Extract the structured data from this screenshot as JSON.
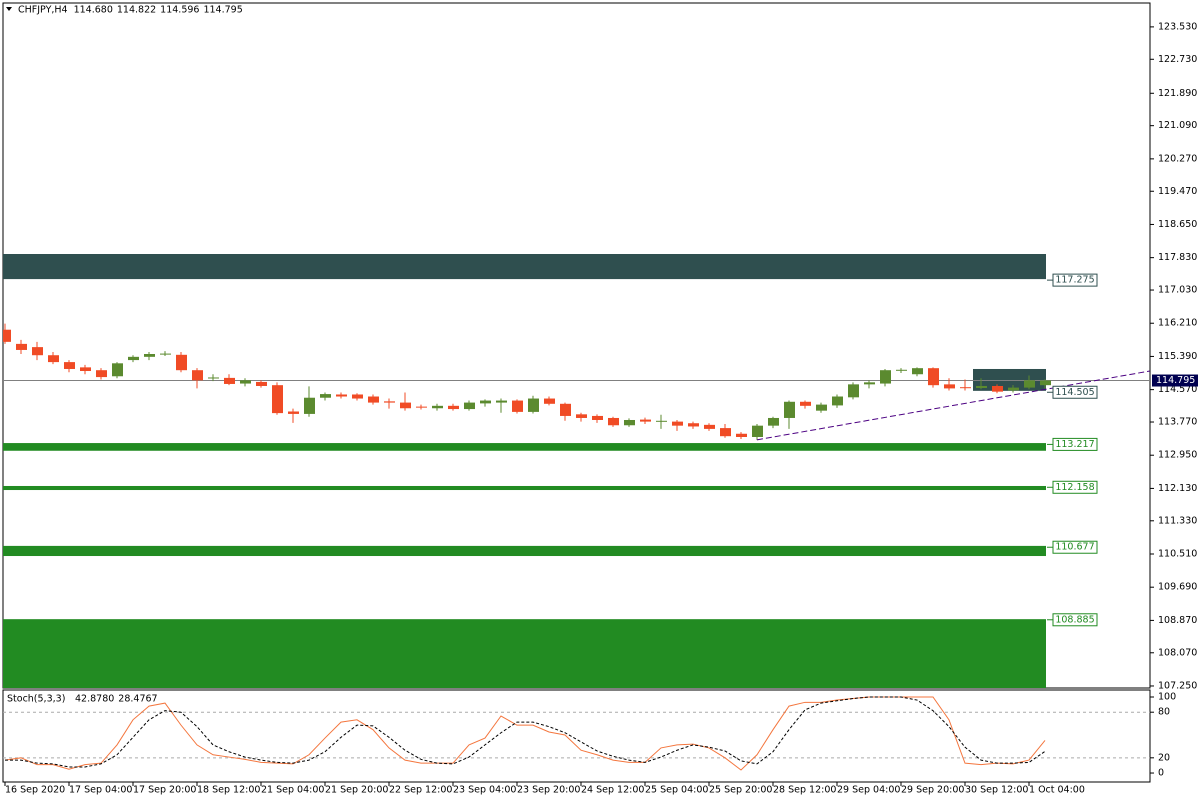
{
  "header": {
    "symbol": "CHFJPY,H4",
    "values": [
      114.68,
      114.822,
      114.596,
      114.795
    ],
    "value_labels": [
      "114.680",
      "114.822",
      "114.596",
      "114.795"
    ]
  },
  "chart_data": [
    {
      "type": "candlestick",
      "categories": [
        "16 Sep 2020",
        null,
        null,
        null,
        "17 Sep 04:00",
        null,
        null,
        null,
        "17 Sep 20:00",
        null,
        null,
        null,
        "18 Sep 12:00",
        null,
        null,
        null,
        "21 Sep 04:00",
        null,
        null,
        null,
        "21 Sep 20:00",
        null,
        null,
        null,
        "22 Sep 12:00",
        null,
        null,
        null,
        "23 Sep 04:00",
        null,
        null,
        null,
        "23 Sep 20:00",
        null,
        null,
        null,
        "24 Sep 12:00",
        null,
        null,
        null,
        "25 Sep 04:00",
        null,
        null,
        null,
        "25 Sep 20:00",
        null,
        null,
        null,
        "28 Sep 12:00",
        null,
        null,
        null,
        "29 Sep 04:00",
        null,
        null,
        null,
        "29 Sep 20:00",
        null,
        null,
        null,
        "30 Sep 12:00",
        null,
        null,
        null,
        "1 Oct 04:00",
        null
      ],
      "open": [
        116.05,
        115.7,
        115.62,
        115.42,
        115.25,
        115.12,
        115.05,
        114.9,
        115.3,
        115.38,
        115.45,
        115.43,
        115.05,
        114.85,
        114.86,
        114.72,
        114.76,
        114.68,
        114.03,
        113.97,
        114.37,
        114.45,
        114.45,
        114.4,
        114.28,
        114.25,
        114.15,
        114.11,
        114.17,
        114.09,
        114.23,
        114.25,
        114.3,
        114.02,
        114.35,
        114.22,
        113.96,
        113.92,
        113.87,
        113.69,
        113.83,
        113.79,
        113.78,
        113.74,
        113.7,
        113.62,
        113.48,
        113.4,
        113.68,
        113.87,
        114.27,
        114.05,
        114.18,
        114.38,
        114.7,
        114.72,
        115.05,
        114.95,
        115.1,
        114.7,
        114.63,
        114.61,
        114.66,
        114.55,
        114.62,
        114.68
      ],
      "high": [
        116.2,
        115.8,
        115.75,
        115.5,
        115.3,
        115.18,
        115.1,
        115.25,
        115.42,
        115.5,
        115.52,
        115.5,
        115.1,
        114.95,
        114.95,
        114.85,
        114.8,
        114.75,
        114.1,
        114.65,
        114.5,
        114.5,
        114.48,
        114.45,
        114.35,
        114.5,
        114.2,
        114.22,
        114.22,
        114.3,
        114.33,
        114.35,
        114.33,
        114.42,
        114.4,
        114.25,
        114.0,
        113.96,
        113.9,
        113.86,
        113.88,
        113.95,
        113.82,
        113.78,
        113.74,
        113.72,
        113.52,
        113.72,
        113.9,
        114.3,
        114.3,
        114.25,
        114.45,
        114.75,
        114.8,
        115.08,
        115.1,
        115.12,
        115.12,
        114.85,
        114.82,
        114.85,
        114.7,
        114.68,
        114.92,
        114.822
      ],
      "low": [
        115.7,
        115.45,
        115.3,
        115.2,
        115.0,
        114.95,
        114.82,
        114.85,
        115.25,
        115.3,
        115.4,
        115.0,
        114.6,
        114.78,
        114.68,
        114.65,
        114.62,
        113.95,
        113.75,
        113.9,
        114.3,
        114.35,
        114.3,
        114.2,
        114.1,
        114.05,
        114.08,
        114.05,
        114.05,
        114.05,
        114.15,
        114.0,
        113.98,
        113.98,
        114.18,
        113.8,
        113.78,
        113.75,
        113.65,
        113.65,
        113.72,
        113.6,
        113.55,
        113.6,
        113.55,
        113.38,
        113.35,
        113.33,
        113.62,
        113.6,
        114.1,
        114.0,
        114.12,
        114.33,
        114.6,
        114.65,
        114.98,
        114.9,
        114.62,
        114.55,
        114.55,
        114.58,
        114.48,
        114.5,
        114.58,
        114.596
      ],
      "close": [
        115.75,
        115.55,
        115.42,
        115.25,
        115.08,
        115.03,
        114.88,
        115.22,
        115.38,
        115.45,
        115.46,
        115.05,
        114.8,
        114.87,
        114.71,
        114.8,
        114.66,
        113.99,
        113.97,
        114.37,
        114.46,
        114.4,
        114.35,
        114.25,
        114.25,
        114.11,
        114.13,
        114.17,
        114.09,
        114.25,
        114.3,
        114.3,
        114.02,
        114.35,
        114.22,
        113.92,
        113.87,
        113.82,
        113.69,
        113.82,
        113.78,
        113.8,
        113.68,
        113.66,
        113.6,
        113.42,
        113.4,
        113.68,
        113.87,
        114.27,
        114.17,
        114.2,
        114.4,
        114.7,
        114.75,
        115.05,
        115.06,
        115.1,
        114.68,
        114.6,
        114.61,
        114.66,
        114.52,
        114.62,
        114.8,
        114.795
      ],
      "up_color": "#5b8a2f",
      "down_color": "#f04b25",
      "ylim": [
        107.2,
        124.12
      ],
      "yticks": [
        {
          "value": 123.53,
          "label": "123.530"
        },
        {
          "value": 122.73,
          "label": "122.730"
        },
        {
          "value": 121.89,
          "label": "121.890"
        },
        {
          "value": 121.09,
          "label": "121.090"
        },
        {
          "value": 120.27,
          "label": "120.270"
        },
        {
          "value": 119.47,
          "label": "119.470"
        },
        {
          "value": 118.65,
          "label": "118.650"
        },
        {
          "value": 117.83,
          "label": "117.830"
        },
        {
          "value": 117.03,
          "label": "117.030"
        },
        {
          "value": 116.21,
          "label": "116.210"
        },
        {
          "value": 115.39,
          "label": "115.390"
        },
        {
          "value": 114.57,
          "label": "114.570"
        },
        {
          "value": 113.77,
          "label": "113.770"
        },
        {
          "value": 112.95,
          "label": "112.950"
        },
        {
          "value": 112.13,
          "label": "112.130"
        },
        {
          "value": 111.33,
          "label": "111.330"
        },
        {
          "value": 110.51,
          "label": "110.510"
        },
        {
          "value": 109.69,
          "label": "109.690"
        },
        {
          "value": 108.87,
          "label": "108.870"
        },
        {
          "value": 108.07,
          "label": "108.070"
        },
        {
          "value": 107.25,
          "label": "107.250"
        }
      ],
      "zones": [
        {
          "top": 117.92,
          "bottom": 117.3,
          "level": 117.275,
          "start": 0,
          "color": "#2f4f4f"
        },
        {
          "top": 115.08,
          "bottom": 114.54,
          "level": 114.505,
          "start": 61,
          "color": "#2f4f4f"
        },
        {
          "top": 113.25,
          "bottom": 113.06,
          "level": 113.217,
          "start": 0,
          "color": "#228b22"
        },
        {
          "top": 112.19,
          "bottom": 112.09,
          "level": 112.158,
          "start": 0,
          "color": "#228b22"
        },
        {
          "top": 110.71,
          "bottom": 110.46,
          "level": 110.677,
          "start": 0,
          "color": "#228b22"
        },
        {
          "top": 108.9,
          "bottom": 107.2,
          "level": 108.885,
          "start": 0,
          "color": "#228b22"
        }
      ],
      "trendline": {
        "start": {
          "index": 47,
          "price": 113.33
        },
        "end": {
          "index": 71.56,
          "price": 115.03
        },
        "color": "#4b0082"
      }
    },
    {
      "type": "stochastic",
      "title": "Stoch(5,3,3)",
      "values": [
        42.878,
        28.4767
      ],
      "value_labels": [
        "42.8780",
        "28.4767"
      ],
      "ylim": [
        -11.8,
        109.2
      ],
      "yticks": [
        100,
        80,
        20,
        0
      ],
      "levels": [
        20,
        80
      ],
      "series": [
        {
          "color": "#f4763e",
          "values": [
            17,
            20,
            11,
            11,
            5,
            11,
            13,
            37,
            70,
            88,
            92,
            63,
            37,
            24,
            21,
            18,
            14,
            13,
            12,
            24,
            46,
            67,
            70,
            57,
            33,
            17,
            13,
            13,
            13,
            37,
            46,
            75,
            63,
            63,
            54,
            50,
            30,
            24,
            17,
            14,
            14,
            33,
            37,
            38,
            33,
            20,
            4,
            24,
            57,
            88,
            93,
            93,
            96,
            98,
            100,
            100,
            100,
            100,
            100,
            70,
            13,
            11,
            13,
            12,
            17,
            42.878
          ]
        },
        {
          "color": "#000000",
          "dashed": true,
          "values": [
            17,
            17,
            13,
            12,
            8,
            8,
            12,
            24,
            47,
            70,
            82,
            80,
            61,
            37,
            28,
            21,
            17,
            14,
            13,
            17,
            28,
            47,
            63,
            62,
            47,
            30,
            18,
            13,
            12,
            21,
            37,
            53,
            67,
            67,
            61,
            53,
            41,
            29,
            22,
            17,
            14,
            21,
            30,
            37,
            34,
            29,
            16,
            12,
            28,
            57,
            83,
            92,
            95,
            98,
            100,
            100,
            100,
            96,
            82,
            61,
            34,
            17,
            13,
            13,
            14,
            28.4767
          ]
        }
      ]
    }
  ]
}
